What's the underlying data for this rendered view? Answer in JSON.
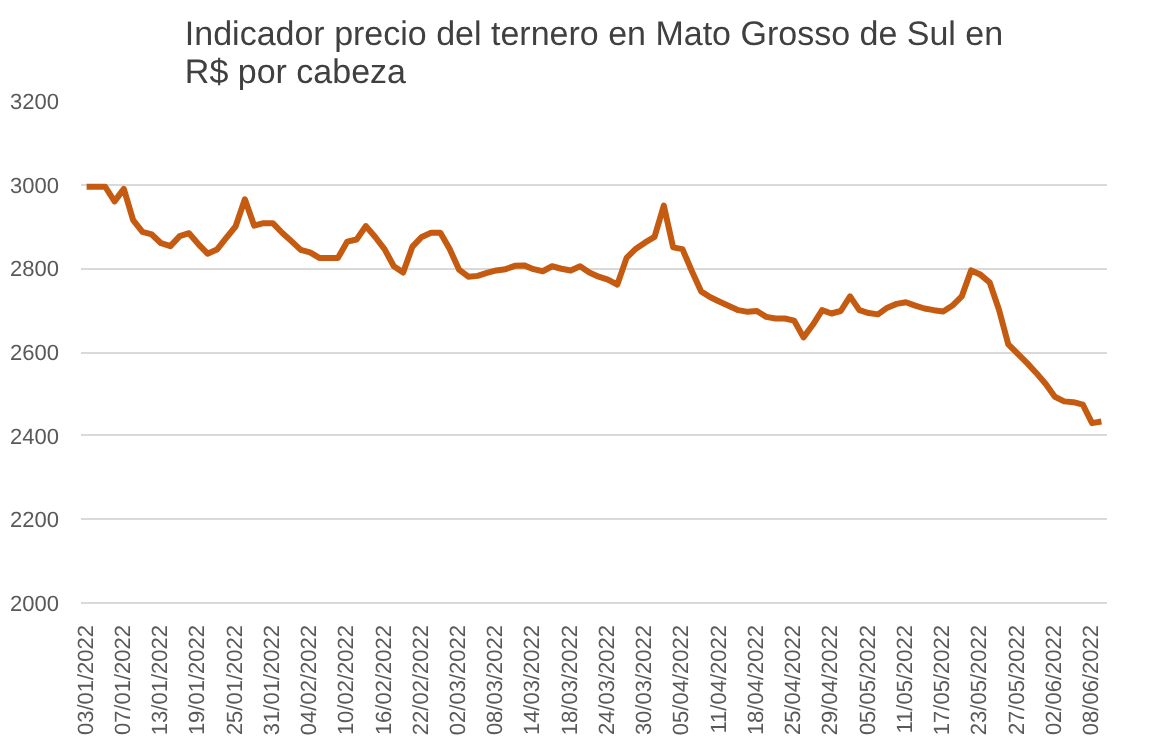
{
  "chart_data": {
    "type": "line",
    "title": "Indicador precio del ternero en Mato Grosso de Sul en\nR$ por cabeza",
    "categories": [
      "03/01/2022",
      null,
      null,
      null,
      "07/01/2022",
      null,
      null,
      null,
      "13/01/2022",
      null,
      null,
      null,
      "19/01/2022",
      null,
      null,
      null,
      "25/01/2022",
      null,
      null,
      null,
      "31/01/2022",
      null,
      null,
      null,
      "04/02/2022",
      null,
      null,
      null,
      "10/02/2022",
      null,
      null,
      null,
      "16/02/2022",
      null,
      null,
      null,
      "22/02/2022",
      null,
      null,
      null,
      "02/03/2022",
      null,
      null,
      null,
      "08/03/2022",
      null,
      null,
      null,
      "14/03/2022",
      null,
      null,
      null,
      "18/03/2022",
      null,
      null,
      null,
      "24/03/2022",
      null,
      null,
      null,
      "30/03/2022",
      null,
      null,
      null,
      "05/04/2022",
      null,
      null,
      null,
      "11/04/2022",
      null,
      null,
      null,
      "18/04/2022",
      null,
      null,
      null,
      "25/04/2022",
      null,
      null,
      null,
      "29/04/2022",
      null,
      null,
      null,
      "05/05/2022",
      null,
      null,
      null,
      "11/05/2022",
      null,
      null,
      null,
      "17/05/2022",
      null,
      null,
      null,
      "23/05/2022",
      null,
      null,
      null,
      "27/05/2022",
      null,
      null,
      null,
      "02/06/2022",
      null,
      null,
      null,
      "08/06/2022",
      null
    ],
    "series": [
      {
        "color": "#c55a11",
        "values": [
          2995,
          2995,
          2995,
          2960,
          2990,
          2915,
          2887,
          2881,
          2860,
          2853,
          2877,
          2884,
          2858,
          2835,
          2845,
          2873,
          2900,
          2965,
          2902,
          2908,
          2908,
          2885,
          2865,
          2844,
          2838,
          2825,
          2825,
          2825,
          2864,
          2869,
          2901,
          2875,
          2846,
          2805,
          2790,
          2852,
          2875,
          2885,
          2885,
          2846,
          2797,
          2780,
          2782,
          2789,
          2795,
          2798,
          2806,
          2807,
          2798,
          2793,
          2805,
          2799,
          2795,
          2805,
          2790,
          2780,
          2773,
          2761,
          2825,
          2847,
          2862,
          2875,
          2950,
          2850,
          2846,
          2794,
          2745,
          2731,
          2720,
          2710,
          2700,
          2696,
          2698,
          2684,
          2680,
          2680,
          2675,
          2635,
          2665,
          2700,
          2692,
          2698,
          2733,
          2700,
          2693,
          2690,
          2706,
          2715,
          2719,
          2711,
          2704,
          2700,
          2697,
          2711,
          2733,
          2795,
          2785,
          2766,
          2701,
          2618,
          2596,
          2574,
          2550,
          2524,
          2493,
          2482,
          2480,
          2474,
          2430,
          2434
        ]
      }
    ],
    "ylim": [
      2000,
      3200
    ],
    "yticks": [
      2000,
      2200,
      2400,
      2600,
      2800,
      3000,
      3200
    ],
    "grid": "y",
    "marker": "none",
    "line_style": "solid"
  }
}
